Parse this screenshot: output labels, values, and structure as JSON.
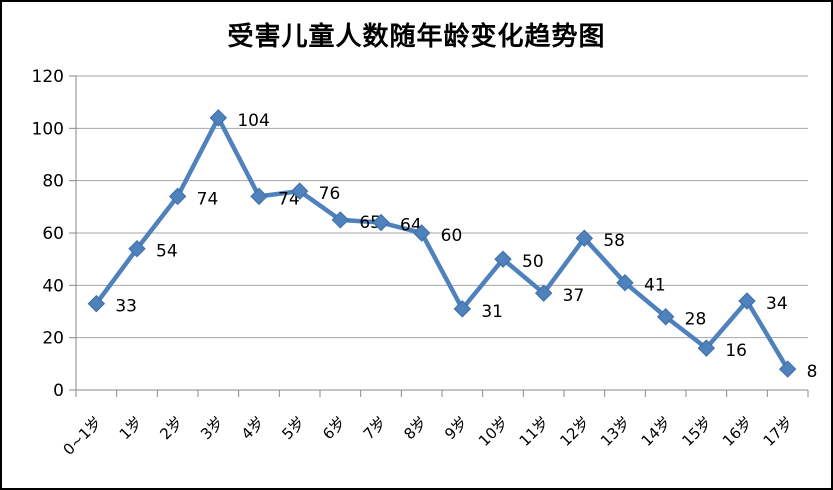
{
  "chart_data": {
    "type": "line",
    "title": "受害儿童人数随年龄变化趋势图",
    "categories": [
      "0~1岁",
      "1岁",
      "2岁",
      "3岁",
      "4岁",
      "5岁",
      "6岁",
      "7岁",
      "8岁",
      "9岁",
      "10岁",
      "11岁",
      "12岁",
      "13岁",
      "14岁",
      "15岁",
      "16岁",
      "17岁"
    ],
    "values": [
      33,
      54,
      74,
      104,
      74,
      76,
      65,
      64,
      60,
      31,
      50,
      37,
      58,
      41,
      28,
      16,
      34,
      8
    ],
    "xlabel": "",
    "ylabel": "",
    "ylim": [
      0,
      120
    ],
    "yticks": [
      0,
      20,
      40,
      60,
      80,
      100,
      120
    ],
    "grid": true,
    "legend": "none",
    "data_labels": true,
    "marker": "diamond",
    "colors": {
      "line": "#4F81BD",
      "marker_fill": "#4F81BD",
      "marker_edge": "#3D6EA5",
      "gridline": "#A6A6A6",
      "axis": "#898989",
      "text": "#000000",
      "background": "#FFFFFF",
      "border": "#000000"
    }
  }
}
